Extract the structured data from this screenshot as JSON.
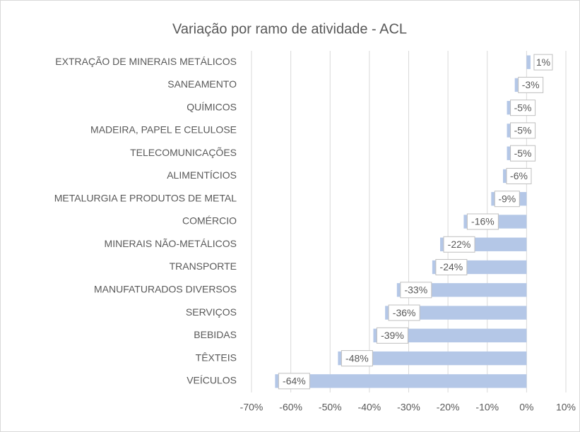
{
  "chart_data": {
    "type": "bar",
    "orientation": "horizontal",
    "title": "Variação por ramo de atividade - ACL",
    "categories": [
      "EXTRAÇÃO DE MINERAIS METÁLICOS",
      "SANEAMENTO",
      "QUÍMICOS",
      "MADEIRA, PAPEL E CELULOSE",
      "TELECOMUNICAÇÕES",
      "ALIMENTÍCIOS",
      "METALURGIA E PRODUTOS DE METAL",
      "COMÉRCIO",
      "MINERAIS NÃO-METÁLICOS",
      "TRANSPORTE",
      "MANUFATURADOS DIVERSOS",
      "SERVIÇOS",
      "BEBIDAS",
      "TÊXTEIS",
      "VEÍCULOS"
    ],
    "values": [
      1,
      -3,
      -5,
      -5,
      -5,
      -6,
      -9,
      -16,
      -22,
      -24,
      -33,
      -36,
      -39,
      -48,
      -64
    ],
    "value_labels": [
      "1%",
      "-3%",
      "-5%",
      "-5%",
      "-5%",
      "-6%",
      "-9%",
      "-16%",
      "-22%",
      "-24%",
      "-33%",
      "-36%",
      "-39%",
      "-48%",
      "-64%"
    ],
    "color": "#b4c7e7",
    "negative_label_color": "#c00000",
    "positive_label_color": "#00b050",
    "xlim": [
      -70,
      10
    ],
    "xticks": [
      {
        "value": -70,
        "label": "-70%"
      },
      {
        "value": -60,
        "label": "-60%"
      },
      {
        "value": -50,
        "label": "-50%"
      },
      {
        "value": -40,
        "label": "-40%"
      },
      {
        "value": -30,
        "label": "-30%"
      },
      {
        "value": -20,
        "label": "-20%"
      },
      {
        "value": -10,
        "label": "-10%"
      },
      {
        "value": 0,
        "label": "0%"
      },
      {
        "value": 10,
        "label": "10%"
      }
    ],
    "grid": true
  }
}
